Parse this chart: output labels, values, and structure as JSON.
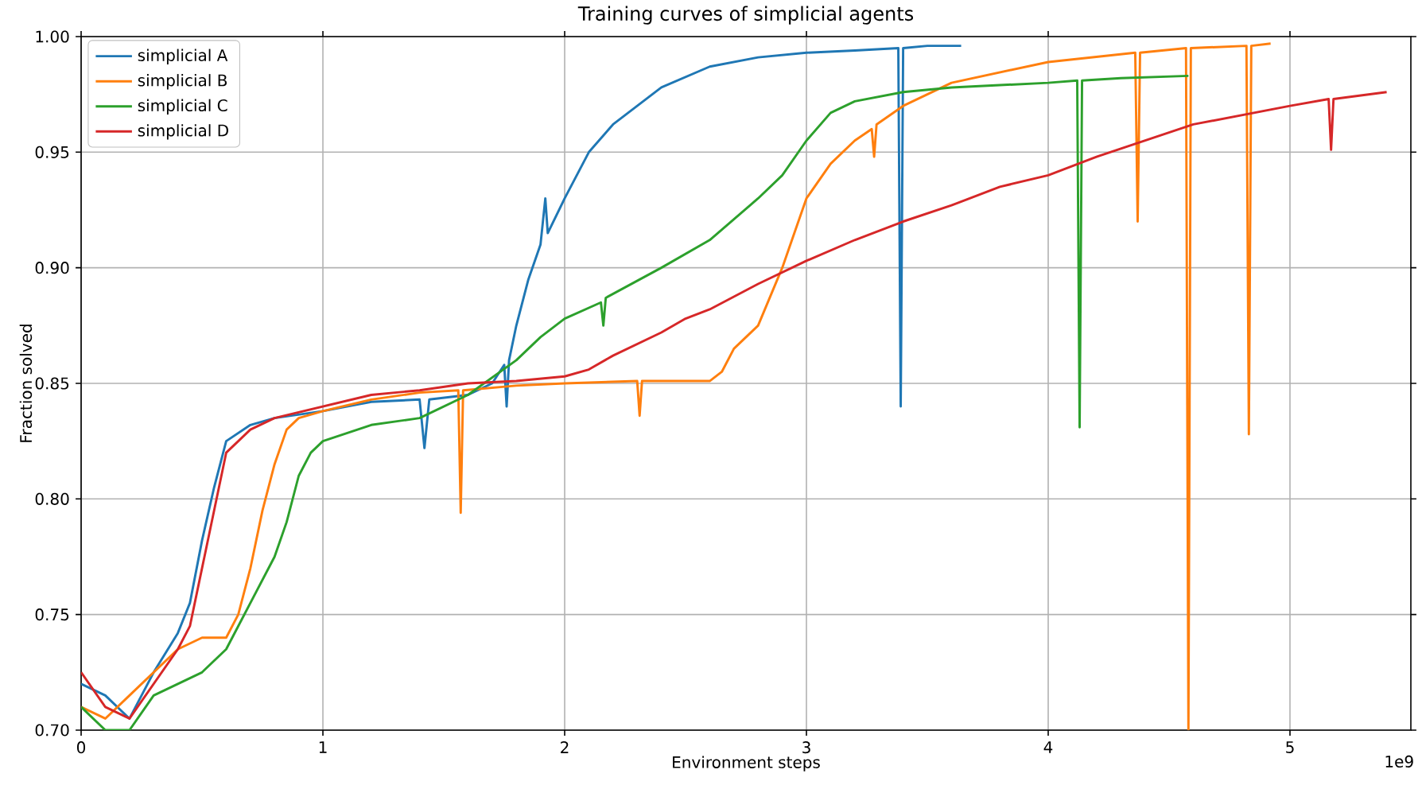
{
  "chart_data": {
    "type": "line",
    "title": "Training curves of simplicial agents",
    "xlabel": "Environment steps",
    "ylabel": "Fraction solved",
    "annotations": [
      "1e9"
    ],
    "xlim": [
      0,
      5.5
    ],
    "xticks": [
      0,
      1,
      2,
      3,
      4,
      5
    ],
    "ylim": [
      0.7,
      1.0
    ],
    "yticks": [
      {
        "value": 0.7,
        "label": "0.70"
      },
      {
        "value": 0.75,
        "label": "0.75"
      },
      {
        "value": 0.8,
        "label": "0.80"
      },
      {
        "value": 0.85,
        "label": "0.85"
      },
      {
        "value": 0.9,
        "label": "0.90"
      },
      {
        "value": 0.95,
        "label": "0.95"
      },
      {
        "value": 1.0,
        "label": "1.00"
      }
    ],
    "grid": true,
    "legend": "top left",
    "marker": "none",
    "line_style": "solid",
    "series": [
      {
        "name": "simplicial A",
        "color": "#1f77b4",
        "x": [
          0,
          0.1,
          0.2,
          0.3,
          0.4,
          0.45,
          0.5,
          0.55,
          0.6,
          0.7,
          0.8,
          1.0,
          1.2,
          1.4,
          1.42,
          1.44,
          1.6,
          1.7,
          1.75,
          1.76,
          1.77,
          1.8,
          1.85,
          1.9,
          1.92,
          1.93,
          2.0,
          2.05,
          2.1,
          2.2,
          2.4,
          2.6,
          2.8,
          3.0,
          3.2,
          3.38,
          3.39,
          3.4,
          3.5,
          3.64
        ],
        "values": [
          0.72,
          0.715,
          0.705,
          0.725,
          0.742,
          0.755,
          0.782,
          0.805,
          0.825,
          0.832,
          0.835,
          0.838,
          0.842,
          0.843,
          0.822,
          0.843,
          0.845,
          0.85,
          0.858,
          0.84,
          0.86,
          0.875,
          0.895,
          0.91,
          0.93,
          0.915,
          0.93,
          0.94,
          0.95,
          0.962,
          0.978,
          0.987,
          0.991,
          0.993,
          0.994,
          0.995,
          0.84,
          0.995,
          0.996,
          0.996
        ]
      },
      {
        "name": "simplicial B",
        "color": "#ff7f0e",
        "x": [
          0,
          0.1,
          0.2,
          0.3,
          0.4,
          0.5,
          0.6,
          0.65,
          0.7,
          0.75,
          0.8,
          0.85,
          0.9,
          1.0,
          1.2,
          1.4,
          1.56,
          1.57,
          1.58,
          1.8,
          2.0,
          2.3,
          2.31,
          2.32,
          2.6,
          2.65,
          2.7,
          2.8,
          2.9,
          2.95,
          3.0,
          3.1,
          3.2,
          3.27,
          3.28,
          3.29,
          3.4,
          3.6,
          4.0,
          4.36,
          4.37,
          4.38,
          4.57,
          4.58,
          4.59,
          4.82,
          4.83,
          4.84,
          4.92
        ],
        "values": [
          0.71,
          0.705,
          0.715,
          0.725,
          0.735,
          0.74,
          0.74,
          0.75,
          0.77,
          0.795,
          0.815,
          0.83,
          0.835,
          0.838,
          0.843,
          0.846,
          0.847,
          0.794,
          0.847,
          0.849,
          0.85,
          0.851,
          0.836,
          0.851,
          0.851,
          0.855,
          0.865,
          0.875,
          0.9,
          0.915,
          0.93,
          0.945,
          0.955,
          0.96,
          0.948,
          0.962,
          0.97,
          0.98,
          0.989,
          0.993,
          0.92,
          0.993,
          0.995,
          0.7,
          0.995,
          0.996,
          0.828,
          0.996,
          0.997
        ]
      },
      {
        "name": "simplicial C",
        "color": "#2ca02c",
        "x": [
          0,
          0.1,
          0.2,
          0.3,
          0.4,
          0.5,
          0.6,
          0.7,
          0.8,
          0.85,
          0.9,
          0.95,
          1.0,
          1.2,
          1.4,
          1.6,
          1.8,
          1.9,
          2.0,
          2.15,
          2.16,
          2.17,
          2.4,
          2.6,
          2.8,
          2.9,
          3.0,
          3.1,
          3.2,
          3.4,
          3.6,
          4.0,
          4.12,
          4.13,
          4.14,
          4.3,
          4.58
        ],
        "values": [
          0.71,
          0.7,
          0.7,
          0.715,
          0.72,
          0.725,
          0.735,
          0.755,
          0.775,
          0.79,
          0.81,
          0.82,
          0.825,
          0.832,
          0.835,
          0.845,
          0.86,
          0.87,
          0.878,
          0.885,
          0.875,
          0.887,
          0.9,
          0.912,
          0.93,
          0.94,
          0.955,
          0.967,
          0.972,
          0.976,
          0.978,
          0.98,
          0.981,
          0.831,
          0.981,
          0.982,
          0.983
        ]
      },
      {
        "name": "simplicial D",
        "color": "#d62728",
        "x": [
          0,
          0.1,
          0.2,
          0.3,
          0.4,
          0.45,
          0.5,
          0.55,
          0.6,
          0.7,
          0.8,
          1.0,
          1.2,
          1.4,
          1.6,
          1.8,
          2.0,
          2.1,
          2.2,
          2.4,
          2.5,
          2.6,
          2.8,
          3.0,
          3.2,
          3.4,
          3.6,
          3.8,
          4.0,
          4.2,
          4.4,
          4.6,
          4.8,
          5.0,
          5.16,
          5.17,
          5.18,
          5.4
        ],
        "values": [
          0.725,
          0.71,
          0.705,
          0.72,
          0.735,
          0.745,
          0.77,
          0.795,
          0.82,
          0.83,
          0.835,
          0.84,
          0.845,
          0.847,
          0.85,
          0.851,
          0.853,
          0.856,
          0.862,
          0.872,
          0.878,
          0.882,
          0.893,
          0.903,
          0.912,
          0.92,
          0.927,
          0.935,
          0.94,
          0.948,
          0.955,
          0.962,
          0.966,
          0.97,
          0.973,
          0.951,
          0.973,
          0.976
        ]
      }
    ]
  }
}
